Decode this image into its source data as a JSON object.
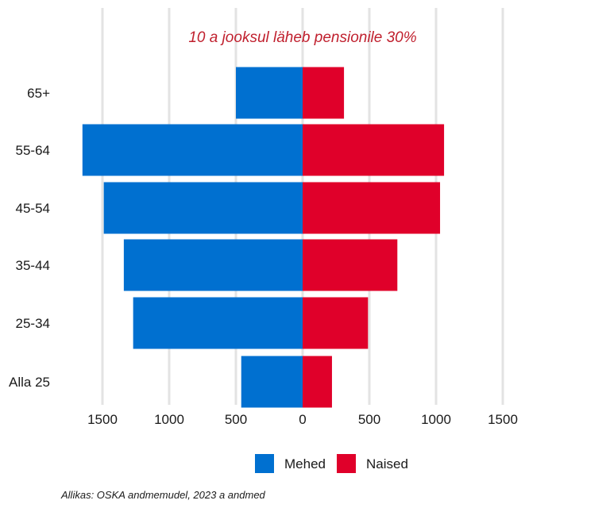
{
  "chart_data": {
    "type": "bar",
    "orientation": "horizontal",
    "layout": "diverging",
    "title": "10 a jooksul läheb pensionile 30%",
    "categories": [
      "Alla 25",
      "25-34",
      "35-44",
      "45-54",
      "55-64",
      "65+"
    ],
    "series": [
      {
        "name": "Mehed",
        "color": "#0070d0",
        "direction": "left",
        "values": [
          460,
          1270,
          1340,
          1490,
          1650,
          500
        ]
      },
      {
        "name": "Naised",
        "color": "#e0002a",
        "direction": "right",
        "values": [
          220,
          490,
          710,
          1030,
          1060,
          310
        ]
      }
    ],
    "xlim": [
      -1500,
      1500
    ],
    "x_ticks": [
      -1500,
      -1000,
      -500,
      0,
      500,
      1000,
      1500
    ],
    "x_tick_labels": [
      "1500",
      "1000",
      "500",
      "0",
      "500",
      "1000",
      "1500"
    ],
    "xlabel": "",
    "ylabel": "",
    "grid": true,
    "legend_position": "bottom",
    "caption": "Allikas: OSKA andmemudel, 2023 a andmed"
  }
}
